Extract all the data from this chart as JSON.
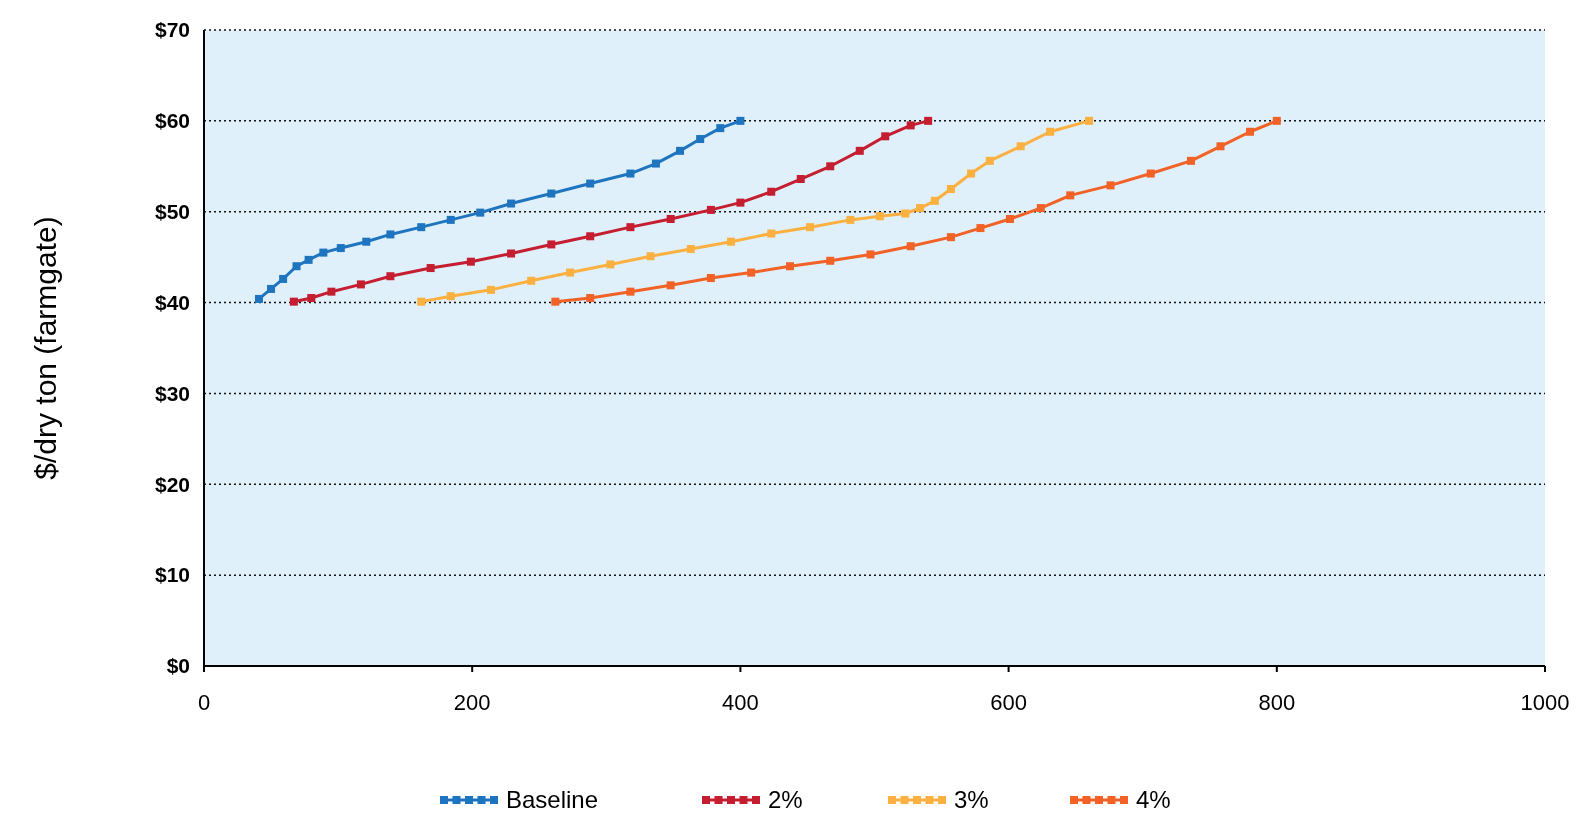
{
  "chart_data": {
    "type": "line",
    "ylabel": "$/dry ton (farmgate)",
    "xlim": [
      0,
      1000
    ],
    "xticks": [
      0,
      200,
      400,
      600,
      800,
      1000
    ],
    "ylim": [
      0,
      70
    ],
    "yticks": [
      {
        "value": 0,
        "label": "$0"
      },
      {
        "value": 10,
        "label": "$10"
      },
      {
        "value": 20,
        "label": "$20"
      },
      {
        "value": 30,
        "label": "$30"
      },
      {
        "value": 40,
        "label": "$40"
      },
      {
        "value": 50,
        "label": "$50"
      },
      {
        "value": 60,
        "label": "$60"
      },
      {
        "value": 70,
        "label": "$70"
      }
    ],
    "grid": "y",
    "legend": "bottom",
    "marker": "square",
    "line_style": "solid",
    "series": [
      {
        "name": "Baseline",
        "color": "#1f74c0",
        "x": [
          41,
          50,
          59,
          69,
          78,
          89,
          102,
          121,
          139,
          162,
          184,
          206,
          229,
          259,
          288,
          318,
          337,
          355,
          370,
          385,
          400
        ],
        "values": [
          40.4,
          41.5,
          42.6,
          44,
          44.7,
          45.5,
          46,
          46.7,
          47.5,
          48.3,
          49.1,
          49.9,
          50.9,
          52,
          53.1,
          54.2,
          55.3,
          56.7,
          58,
          59.2,
          60
        ]
      },
      {
        "name": "2%",
        "color": "#c41e30",
        "x": [
          67,
          80,
          95,
          117,
          139,
          169,
          199,
          229,
          259,
          288,
          318,
          348,
          378,
          400,
          423,
          445,
          467,
          489,
          508,
          527,
          540
        ],
        "values": [
          40.1,
          40.5,
          41.2,
          42,
          42.9,
          43.8,
          44.5,
          45.4,
          46.4,
          47.3,
          48.3,
          49.2,
          50.2,
          51,
          52.2,
          53.6,
          55,
          56.7,
          58.3,
          59.5,
          60
        ]
      },
      {
        "name": "3%",
        "color": "#fbb040",
        "x": [
          162,
          184,
          214,
          244,
          273,
          303,
          333,
          363,
          393,
          423,
          452,
          482,
          504,
          523,
          534,
          545,
          557,
          572,
          586,
          609,
          631,
          660
        ],
        "values": [
          40.1,
          40.7,
          41.4,
          42.4,
          43.3,
          44.2,
          45.1,
          45.9,
          46.7,
          47.6,
          48.3,
          49.1,
          49.5,
          49.8,
          50.4,
          51.2,
          52.5,
          54.2,
          55.6,
          57.2,
          58.8,
          60
        ]
      },
      {
        "name": "4%",
        "color": "#f26125",
        "x": [
          262,
          288,
          318,
          348,
          378,
          408,
          437,
          467,
          497,
          527,
          557,
          579,
          601,
          624,
          646,
          676,
          706,
          736,
          758,
          780,
          800
        ],
        "values": [
          40.1,
          40.5,
          41.2,
          41.9,
          42.7,
          43.3,
          44,
          44.6,
          45.3,
          46.2,
          47.2,
          48.2,
          49.2,
          50.4,
          51.8,
          52.9,
          54.2,
          55.6,
          57.2,
          58.8,
          60
        ]
      }
    ]
  }
}
